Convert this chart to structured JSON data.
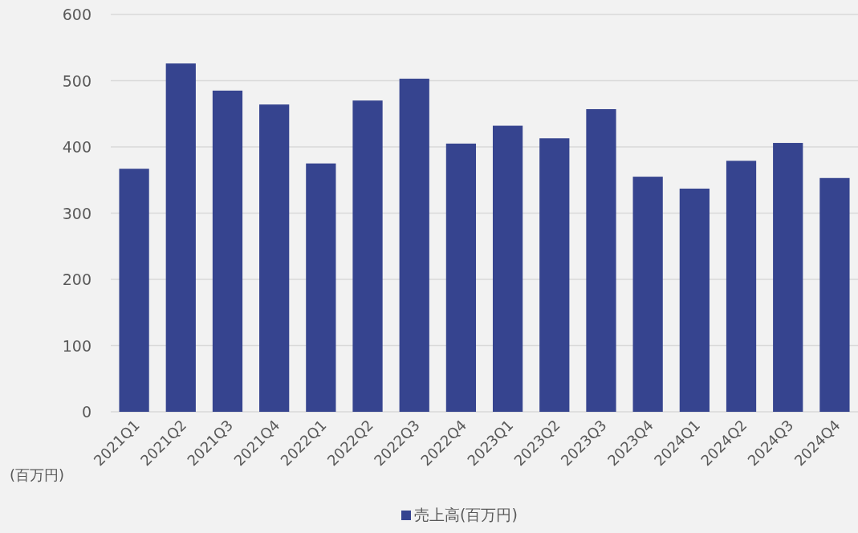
{
  "chart_data": {
    "type": "bar",
    "ylabel": "(百万円)",
    "categories": [
      "2021Q1",
      "2021Q2",
      "2021Q3",
      "2021Q4",
      "2022Q1",
      "2022Q2",
      "2022Q3",
      "2022Q4",
      "2023Q1",
      "2023Q2",
      "2023Q3",
      "2023Q4",
      "2024Q1",
      "2024Q2",
      "2024Q3",
      "2024Q4"
    ],
    "series": [
      {
        "name": "売上高(百万円)",
        "color": "#36448f",
        "values": [
          367,
          526,
          485,
          464,
          375,
          470,
          503,
          405,
          432,
          413,
          457,
          355,
          337,
          379,
          406,
          353
        ]
      }
    ],
    "ylim": [
      0,
      600
    ],
    "yticks": [
      0,
      100,
      200,
      300,
      400,
      500,
      600
    ],
    "grid": "y",
    "legend": "bottom"
  }
}
